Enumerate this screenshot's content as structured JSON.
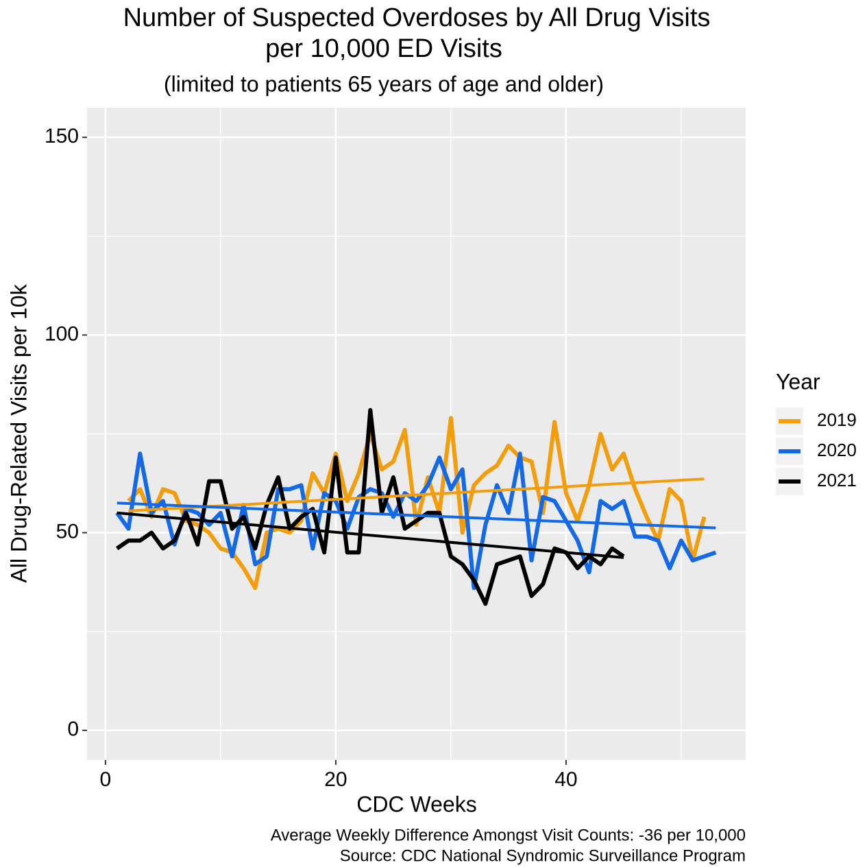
{
  "chart_data": {
    "type": "line",
    "title": [
      "Number of Suspected Overdoses by All Drug Visits",
      "per 10,000 ED Visits"
    ],
    "subtitle": "(limited to patients 65 years of age and older)",
    "x_label": "CDC Weeks",
    "y_label": "All Drug-Related Visits per 10k",
    "caption": [
      "Average Weekly Difference Amongst Visit Counts: -36 per 10,000",
      "Source: CDC National Syndromic Surveillance Program"
    ],
    "legend_title": "Year",
    "legend_position": "right",
    "grid": true,
    "xlim": [
      -1.6,
      55.6
    ],
    "xticks": [
      0,
      20,
      40
    ],
    "xticks_minor": [
      10,
      30,
      50
    ],
    "ylim": [
      -7.5,
      157.5
    ],
    "yticks": [
      0,
      50,
      100,
      150
    ],
    "yticks_minor": [
      25,
      75,
      125
    ],
    "series": [
      {
        "name": "2019",
        "color": "#f29d0c",
        "x": [
          2,
          3,
          4,
          5,
          6,
          7,
          8,
          9,
          10,
          11,
          12,
          13,
          14,
          15,
          16,
          17,
          18,
          19,
          20,
          21,
          22,
          23,
          24,
          25,
          26,
          27,
          28,
          29,
          30,
          31,
          32,
          33,
          34,
          35,
          36,
          37,
          38,
          39,
          40,
          41,
          42,
          43,
          44,
          45,
          46,
          47,
          48,
          49,
          50,
          51,
          52
        ],
        "values": [
          58,
          61,
          54,
          61,
          60,
          53,
          52,
          50,
          46,
          45,
          41,
          36,
          50,
          51,
          50,
          53,
          65,
          60,
          70,
          58,
          65,
          75,
          66,
          68,
          76,
          52,
          64,
          55,
          79,
          50,
          62,
          65,
          67,
          72,
          69,
          68,
          55,
          78,
          60,
          53,
          62,
          75,
          66,
          70,
          61,
          54,
          48,
          61,
          58,
          43,
          54
        ],
        "trend_x": [
          2,
          52
        ],
        "trend": [
          55.5,
          63.6
        ]
      },
      {
        "name": "2020",
        "color": "#1469e6",
        "x": [
          1,
          2,
          3,
          4,
          5,
          6,
          7,
          8,
          9,
          10,
          11,
          12,
          13,
          14,
          15,
          16,
          17,
          18,
          19,
          20,
          21,
          22,
          23,
          24,
          25,
          26,
          27,
          28,
          29,
          30,
          31,
          32,
          33,
          34,
          35,
          36,
          37,
          38,
          39,
          40,
          41,
          42,
          43,
          44,
          45,
          46,
          47,
          48,
          49,
          50,
          51,
          52,
          53
        ],
        "values": [
          55,
          51,
          70,
          55,
          58,
          47,
          56,
          55,
          52,
          55,
          44,
          57,
          42,
          44,
          61,
          61,
          62,
          46,
          60,
          58,
          51,
          59,
          61,
          60,
          54,
          60,
          58,
          62,
          69,
          61,
          66,
          36,
          52,
          62,
          55,
          70,
          43,
          59,
          58,
          53,
          48,
          40,
          58,
          56,
          58,
          49,
          49,
          48,
          41,
          48,
          43,
          44,
          45
        ],
        "trend_x": [
          1,
          53
        ],
        "trend": [
          57.5,
          51.2
        ]
      },
      {
        "name": "2021",
        "color": "#000000",
        "x": [
          1,
          2,
          3,
          4,
          5,
          6,
          7,
          8,
          9,
          10,
          11,
          12,
          13,
          14,
          15,
          16,
          17,
          18,
          19,
          20,
          21,
          22,
          23,
          24,
          25,
          26,
          27,
          28,
          29,
          30,
          31,
          32,
          33,
          34,
          35,
          36,
          37,
          38,
          39,
          40,
          41,
          42,
          43,
          44,
          45
        ],
        "values": [
          46,
          48,
          48,
          50,
          46,
          48,
          55,
          47,
          63,
          63,
          51,
          54,
          46,
          57,
          64,
          51,
          54,
          56,
          45,
          69,
          45,
          45,
          81,
          55,
          64,
          51,
          53,
          55,
          55,
          44,
          42,
          38,
          32,
          42,
          43,
          44,
          34,
          37,
          46,
          45,
          41,
          44,
          42,
          46,
          44
        ],
        "trend_x": [
          1,
          45
        ],
        "trend": [
          55,
          43.7
        ]
      }
    ]
  }
}
